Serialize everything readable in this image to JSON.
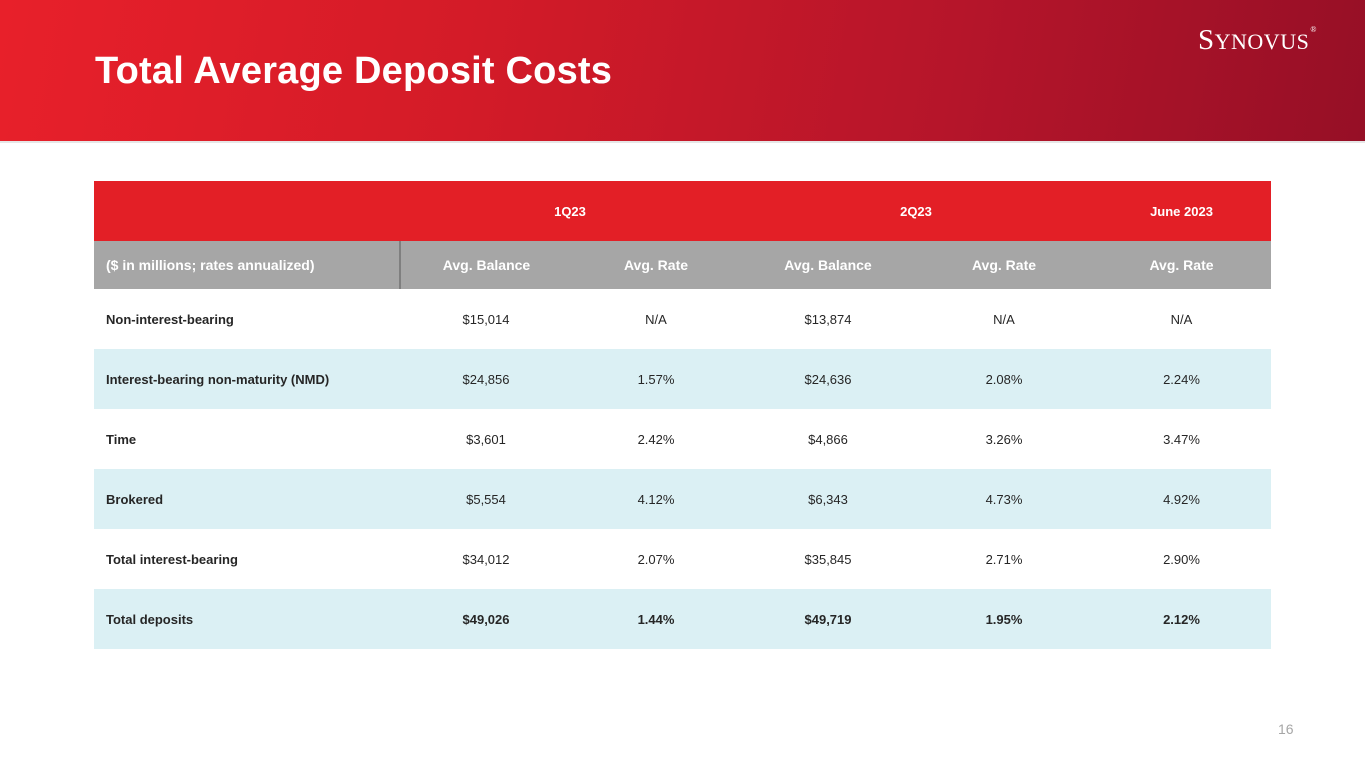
{
  "header": {
    "title": "Total Average Deposit Costs",
    "logo": {
      "first": "S",
      "rest": "YNOVUS",
      "mark": "®"
    },
    "colors": {
      "brand_red": "#e31f26",
      "brand_dark_red": "#960f26"
    }
  },
  "table": {
    "periods": [
      "1Q23",
      "2Q23",
      "June 2023"
    ],
    "headers": [
      "($ in millions; rates annualized)",
      "Avg. Balance",
      "Avg. Rate",
      "Avg. Balance",
      "Avg. Rate",
      "Avg. Rate"
    ],
    "rows": [
      {
        "label": "Non-interest-bearing",
        "values": [
          "$15,014",
          "N/A",
          "$13,874",
          "N/A",
          "N/A"
        ]
      },
      {
        "label": "Interest-bearing non-maturity (NMD)",
        "values": [
          "$24,856",
          "1.57%",
          "$24,636",
          "2.08%",
          "2.24%"
        ]
      },
      {
        "label": "Time",
        "values": [
          "$3,601",
          "2.42%",
          "$4,866",
          "3.26%",
          "3.47%"
        ]
      },
      {
        "label": "Brokered",
        "values": [
          "$5,554",
          "4.12%",
          "$6,343",
          "4.73%",
          "4.92%"
        ]
      },
      {
        "label": "Total interest-bearing",
        "values": [
          "$34,012",
          "2.07%",
          "$35,845",
          "2.71%",
          "2.90%"
        ]
      },
      {
        "label": "Total deposits",
        "values": [
          "$49,026",
          "1.44%",
          "$49,719",
          "1.95%",
          "2.12%"
        ]
      }
    ]
  },
  "footer": {
    "page_number": "16"
  }
}
